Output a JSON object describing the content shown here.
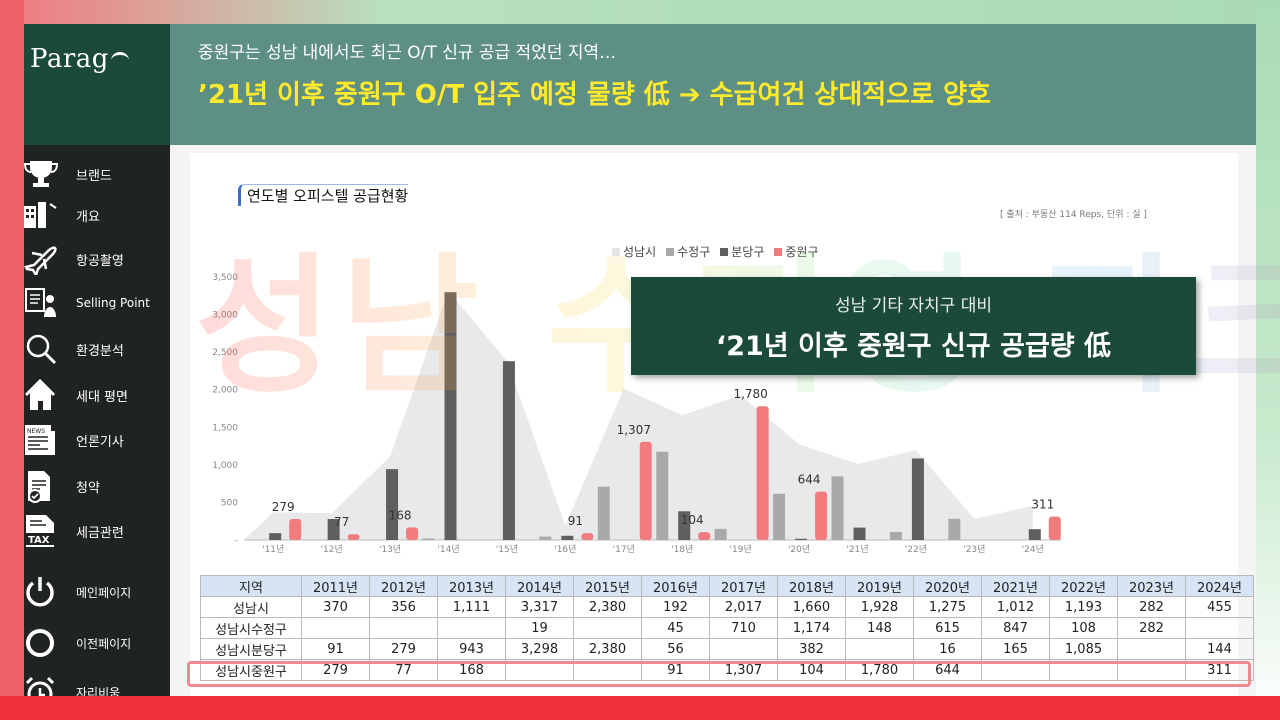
{
  "sidebar": {
    "logo": "Parag",
    "items": [
      {
        "label": "브랜드",
        "icon": "trophy-icon"
      },
      {
        "label": "개요",
        "icon": "buildings-icon"
      },
      {
        "label": "항공촬영",
        "icon": "airplane-icon"
      },
      {
        "label": "Selling Point",
        "icon": "presenter-icon"
      },
      {
        "label": "환경분석",
        "icon": "magnifier-icon"
      },
      {
        "label": "세대 평면",
        "icon": "house-icon"
      },
      {
        "label": "언론기사",
        "icon": "news-icon"
      },
      {
        "label": "청약",
        "icon": "document-check-icon"
      },
      {
        "label": "세금관련",
        "icon": "tax-icon"
      },
      {
        "label": "메인페이지",
        "icon": "power-icon"
      },
      {
        "label": "이전페이지",
        "icon": "back-circle-icon"
      },
      {
        "label": "자리비움",
        "icon": "alarm-clock-icon"
      }
    ]
  },
  "header": {
    "subtitle": "중원구는 성남 내에서도 최근 O/T 신규 공급 적었던 지역…",
    "title": "’21년 이후 중원구 O/T 입주 예정 물량 低 ➔ 수급여건 상대적으로 양호"
  },
  "chart_title": "연도별 오피스텔 공급현황",
  "source": "[ 출처 : 부동산 114 Reps, 단위 : 실 ]",
  "watermark": "성남 수지영 파크고",
  "callout": {
    "subtitle": "성남 기타 자치구 대비",
    "title": "‘21년 이후 중원구 신규 공급량 低"
  },
  "colors": {
    "seongnam": "#e3e5e8",
    "sujeong": "#a9a9a9",
    "bundang": "#5f5f5f",
    "jungwon": "#f27b7e",
    "accent": "#1c4a3a",
    "title_yellow": "#ffea2b"
  },
  "chart_data": {
    "type": "bar",
    "categories": [
      "'11년",
      "'12년",
      "'13년",
      "'14년",
      "'15년",
      "'16년",
      "'17년",
      "'18년",
      "'19년",
      "'20년",
      "'21년",
      "'22년",
      "'23년",
      "'24년"
    ],
    "ylim": [
      0,
      3500
    ],
    "yticks": [
      "-",
      "500",
      "1,000",
      "1,500",
      "2,000",
      "2,500",
      "3,000",
      "3,500"
    ],
    "series": [
      {
        "name": "성남시",
        "kind": "area",
        "values": [
          370,
          356,
          1111,
          3317,
          2380,
          192,
          2017,
          1660,
          1928,
          1275,
          1012,
          1193,
          282,
          455
        ]
      },
      {
        "name": "수정구",
        "values": [
          null,
          null,
          null,
          19,
          null,
          45,
          710,
          1174,
          148,
          615,
          847,
          108,
          282,
          null
        ]
      },
      {
        "name": "분당구",
        "values": [
          91,
          279,
          943,
          3298,
          2380,
          56,
          null,
          382,
          null,
          16,
          165,
          1085,
          null,
          144
        ]
      },
      {
        "name": "중원구",
        "values": [
          279,
          77,
          168,
          null,
          null,
          91,
          1307,
          104,
          1780,
          644,
          null,
          null,
          null,
          311
        ]
      }
    ],
    "data_labels": [
      "279",
      "77",
      "168",
      "",
      "",
      "91",
      "1,307",
      "104",
      "1,780",
      "644",
      "",
      "",
      "",
      "311"
    ]
  },
  "table": {
    "headers": [
      "지역",
      "2011년",
      "2012년",
      "2013년",
      "2014년",
      "2015년",
      "2016년",
      "2017년",
      "2018년",
      "2019년",
      "2020년",
      "2021년",
      "2022년",
      "2023년",
      "2024년"
    ],
    "rows": [
      [
        "성남시",
        "370",
        "356",
        "1,111",
        "3,317",
        "2,380",
        "192",
        "2,017",
        "1,660",
        "1,928",
        "1,275",
        "1,012",
        "1,193",
        "282",
        "455"
      ],
      [
        "성남시수정구",
        "",
        "",
        "",
        "19",
        "",
        "45",
        "710",
        "1,174",
        "148",
        "615",
        "847",
        "108",
        "282",
        ""
      ],
      [
        "성남시분당구",
        "91",
        "279",
        "943",
        "3,298",
        "2,380",
        "56",
        "",
        "382",
        "",
        "16",
        "165",
        "1,085",
        "",
        "144"
      ],
      [
        "성남시중원구",
        "279",
        "77",
        "168",
        "",
        "",
        "91",
        "1,307",
        "104",
        "1,780",
        "644",
        "",
        "",
        "",
        "311"
      ]
    ]
  }
}
